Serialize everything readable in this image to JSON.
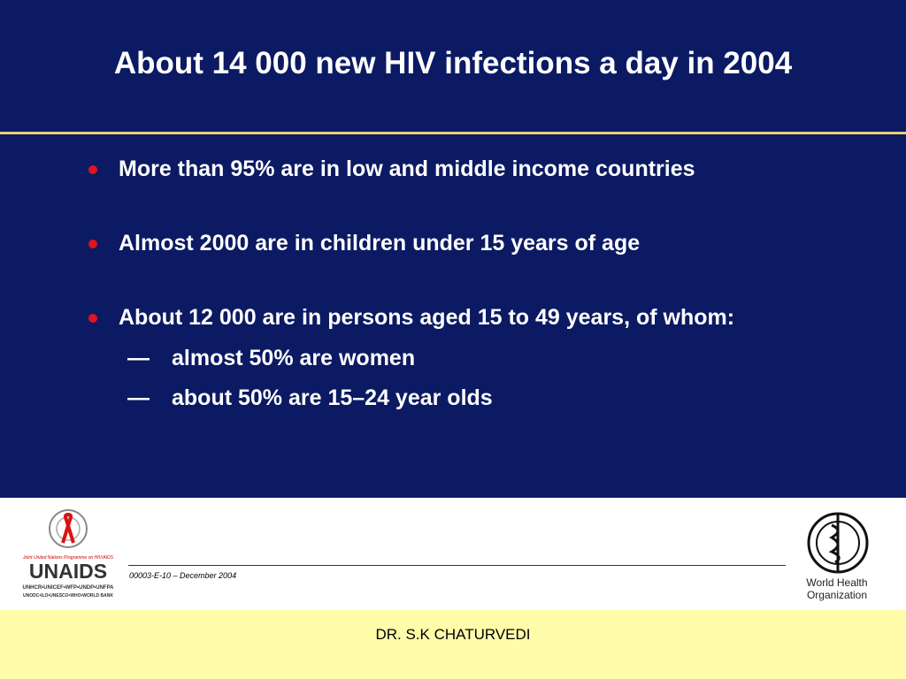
{
  "title": "About 14 000 new HIV infections a day in 2004",
  "bullets": [
    {
      "text": "More than 95% are in low and middle income countries"
    },
    {
      "text": "Almost 2000 are in children under 15 years of age"
    },
    {
      "text": "About 12 000 are in persons aged 15 to 49 years, of whom:",
      "sub_marker": "—",
      "sub_bullets": [
        "almost 50% are women",
        "about 50% are 15–24 year olds"
      ]
    }
  ],
  "footer": {
    "code": "00003-E-10 – December 2004",
    "author": "DR. S.K CHATURVEDI"
  },
  "logos": {
    "unaids": {
      "tagline": "Joint United Nations Programme on HIV/AIDS",
      "name": "UNAIDS",
      "line1": "UNHCR•UNICEF•WFP•UNDP•UNFPA",
      "line2": "UNODC•ILO•UNESCO•WHO•WORLD BANK"
    },
    "who": {
      "line1": "World Health",
      "line2": "Organization"
    }
  }
}
